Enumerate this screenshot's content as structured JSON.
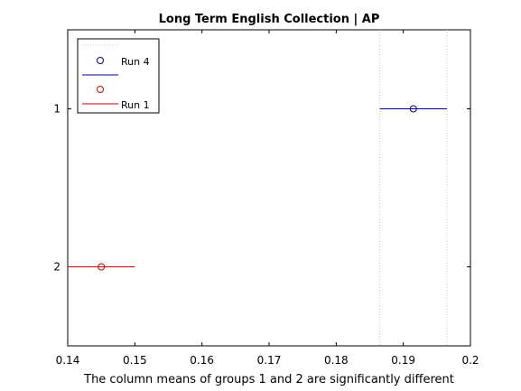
{
  "chart_data": {
    "type": "scatter",
    "title": "Long Term English Collection | AP",
    "xlabel": "The column means of groups 1 and 2 are significantly different",
    "ylabel": "",
    "xlim": [
      0.14,
      0.2
    ],
    "x_ticks": [
      0.14,
      0.15,
      0.16,
      0.17,
      0.18,
      0.19,
      0.2
    ],
    "x_tick_labels": [
      "0.14",
      "0.15",
      "0.16",
      "0.17",
      "0.18",
      "0.19",
      "0.2"
    ],
    "ylim": [
      0.5,
      2.5
    ],
    "y_ticks": [
      1,
      2
    ],
    "y_tick_labels": [
      "1",
      "2"
    ],
    "y_reversed": true,
    "grid": false,
    "legend_position": "top-left",
    "reference_lines": [
      0.1865,
      0.1965
    ],
    "series": [
      {
        "name": "Run 4",
        "group": 1,
        "mean": 0.1915,
        "lower": 0.1865,
        "upper": 0.1965,
        "color": "#00008b"
      },
      {
        "name": "Run 1",
        "group": 2,
        "mean": 0.145,
        "lower": 0.14,
        "upper": 0.15,
        "color": "#cc0000"
      }
    ]
  }
}
